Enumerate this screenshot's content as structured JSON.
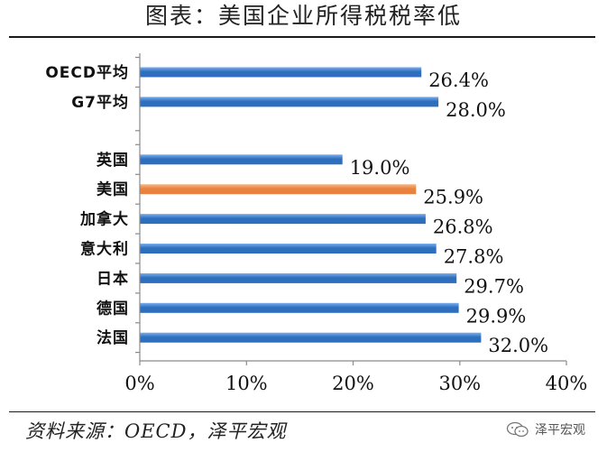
{
  "title": "图表：美国企业所得税税率低",
  "source": "资料来源：OECD，泽平宏观",
  "watermark": "泽平宏观",
  "icon": "wechat-icon",
  "colors": {
    "bar_blue": "#2e6fbd",
    "bar_blue_light": "#7aaef0",
    "bar_orange": "#e9823f",
    "bar_orange_light": "#f6b98a"
  },
  "chart_data": {
    "type": "bar",
    "orientation": "horizontal",
    "title": "图表：美国企业所得税税率低",
    "categories": [
      "OECD平均",
      "G7平均",
      "英国",
      "美国",
      "加拿大",
      "意大利",
      "日本",
      "德国",
      "法国"
    ],
    "values": [
      26.4,
      28.0,
      19.0,
      25.9,
      26.8,
      27.8,
      29.7,
      29.9,
      32.0
    ],
    "data_labels": [
      "26.4%",
      "28.0%",
      "19.0%",
      "25.9%",
      "26.8%",
      "27.8%",
      "29.7%",
      "29.9%",
      "32.0%"
    ],
    "highlight_category": "美国",
    "xlim": [
      0,
      40
    ],
    "xticks": [
      0,
      10,
      20,
      30,
      40
    ],
    "xtick_labels": [
      "0%",
      "10%",
      "20%",
      "30%",
      "40%"
    ],
    "grid": false,
    "legend": "none"
  }
}
